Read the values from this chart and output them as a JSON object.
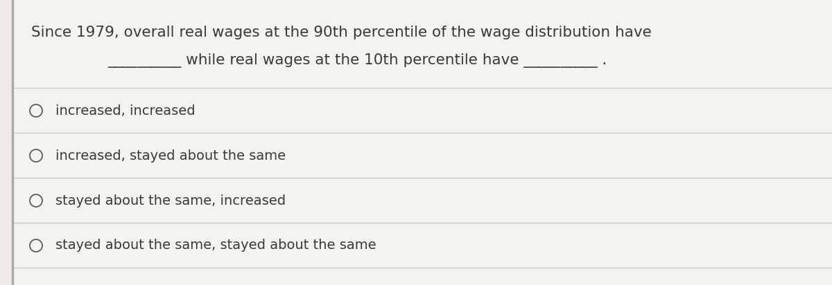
{
  "background_color": "#edeae5",
  "panel_color": "#f5f3ef",
  "border_left_color": "#aaaaaa",
  "line_color": "#c8c5c0",
  "text_color": "#3a3a3a",
  "circle_color": "#666666",
  "question_line1": "Since 1979, overall real wages at the 90th percentile of the wage distribution have",
  "question_line2": "__________ while real wages at the 10th percentile have __________ .",
  "options": [
    "increased, increased",
    "increased, stayed about the same",
    "stayed about the same, increased",
    "stayed about the same, stayed about the same"
  ],
  "question_fontsize": 15.5,
  "option_fontsize": 14.0,
  "figwidth": 12.0,
  "figheight": 4.12,
  "dpi": 100
}
